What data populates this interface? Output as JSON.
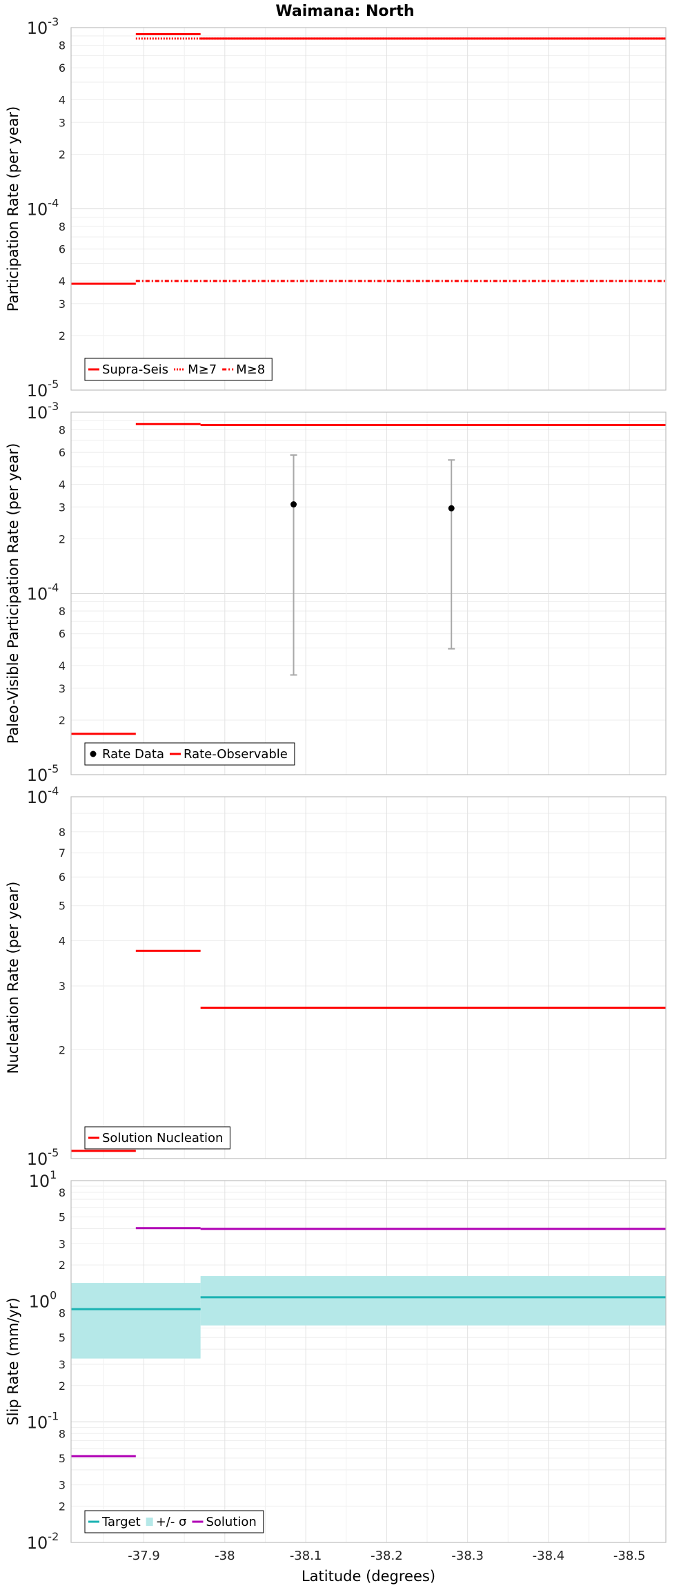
{
  "chart_data": {
    "title": "Waimana: North",
    "xlabel": "Latitude (degrees)",
    "xlim": [
      -37.81,
      -38.545
    ],
    "x_ticks": [
      {
        "value": -37.9,
        "label": "-37.9"
      },
      {
        "value": -38.0,
        "label": "-38"
      },
      {
        "value": -38.1,
        "label": "-38.1"
      },
      {
        "value": -38.2,
        "label": "-38.2"
      },
      {
        "value": -38.3,
        "label": "-38.3"
      },
      {
        "value": -38.4,
        "label": "-38.4"
      },
      {
        "value": -38.5,
        "label": "-38.5"
      }
    ],
    "panels": [
      {
        "id": "participation",
        "type": "line",
        "ylabel": "Participation Rate (per year)",
        "yscale": "log",
        "ylim": [
          1e-05,
          0.001
        ],
        "y_ticks": [
          {
            "value": 0.001,
            "base": "10",
            "exp": "-3",
            "major": true
          },
          {
            "value": 0.0008,
            "label": "8"
          },
          {
            "value": 0.0006,
            "label": "6"
          },
          {
            "value": 0.0004,
            "label": "4"
          },
          {
            "value": 0.0003,
            "label": "3"
          },
          {
            "value": 0.0002,
            "label": "2"
          },
          {
            "value": 0.0001,
            "base": "10",
            "exp": "-4",
            "major": true
          },
          {
            "value": 8e-05,
            "label": "8"
          },
          {
            "value": 6e-05,
            "label": "6"
          },
          {
            "value": 4e-05,
            "label": "4"
          },
          {
            "value": 3e-05,
            "label": "3"
          },
          {
            "value": 2e-05,
            "label": "2"
          },
          {
            "value": 1e-05,
            "base": "10",
            "exp": "-5",
            "major": true
          }
        ],
        "series": [
          {
            "name": "Supra-Seis",
            "color": "#ff0000",
            "style": "solid",
            "steps": [
              [
                -37.81,
                -37.89,
                3.86e-05
              ],
              [
                -37.89,
                -37.97,
                0.00092
              ],
              [
                -37.97,
                -38.545,
                0.00087
              ]
            ]
          },
          {
            "name": "M≥7",
            "color": "#ff0000",
            "style": "dotted",
            "steps": [
              [
                -37.89,
                -37.97,
                0.00087
              ],
              [
                -37.97,
                -38.545,
                0.00087
              ]
            ]
          },
          {
            "name": "M≥8",
            "color": "#ff0000",
            "style": "dashdot",
            "steps": [
              [
                -37.89,
                -38.545,
                4e-05
              ]
            ]
          }
        ],
        "legend": {
          "position": "bottom-left",
          "entries": [
            {
              "label": "Supra-Seis",
              "color": "#ff0000",
              "style": "solid"
            },
            {
              "label": "M≥7",
              "color": "#ff0000",
              "style": "dotted"
            },
            {
              "label": "M≥8",
              "color": "#ff0000",
              "style": "dashdot"
            }
          ]
        }
      },
      {
        "id": "paleo",
        "type": "line",
        "ylabel": "Paleo-Visible Participation Rate (per year)",
        "yscale": "log",
        "ylim": [
          1e-05,
          0.001
        ],
        "y_ticks": [
          {
            "value": 0.001,
            "base": "10",
            "exp": "-3",
            "major": true
          },
          {
            "value": 0.0008,
            "label": "8"
          },
          {
            "value": 0.0006,
            "label": "6"
          },
          {
            "value": 0.0004,
            "label": "4"
          },
          {
            "value": 0.0003,
            "label": "3"
          },
          {
            "value": 0.0002,
            "label": "2"
          },
          {
            "value": 0.0001,
            "base": "10",
            "exp": "-4",
            "major": true
          },
          {
            "value": 8e-05,
            "label": "8"
          },
          {
            "value": 6e-05,
            "label": "6"
          },
          {
            "value": 4e-05,
            "label": "4"
          },
          {
            "value": 3e-05,
            "label": "3"
          },
          {
            "value": 2e-05,
            "label": "2"
          },
          {
            "value": 1e-05,
            "base": "10",
            "exp": "-5",
            "major": true
          }
        ],
        "series": [
          {
            "name": "Rate-Observable",
            "color": "#ff0000",
            "style": "solid",
            "steps": [
              [
                -37.81,
                -37.89,
                1.68e-05
              ],
              [
                -37.89,
                -37.97,
                0.00086
              ],
              [
                -37.97,
                -38.545,
                0.00085
              ]
            ]
          }
        ],
        "points": [
          {
            "name": "Rate Data",
            "x": -38.085,
            "y": 0.00031,
            "low": 3.55e-05,
            "high": 0.00058
          },
          {
            "name": "Rate Data",
            "x": -38.28,
            "y": 0.000295,
            "low": 4.95e-05,
            "high": 0.000545
          }
        ],
        "legend": {
          "position": "bottom-left",
          "entries": [
            {
              "label": "Rate Data",
              "color": "#000000",
              "style": "dot"
            },
            {
              "label": "Rate-Observable",
              "color": "#ff0000",
              "style": "solid"
            }
          ]
        }
      },
      {
        "id": "nucleation",
        "type": "line",
        "ylabel": "Nucleation Rate (per year)",
        "yscale": "log",
        "ylim": [
          1e-05,
          0.0001
        ],
        "y_ticks": [
          {
            "value": 0.0001,
            "base": "10",
            "exp": "-4",
            "major": true
          },
          {
            "value": 8e-05,
            "label": "8"
          },
          {
            "value": 7e-05,
            "label": "7"
          },
          {
            "value": 6e-05,
            "label": "6"
          },
          {
            "value": 5e-05,
            "label": "5"
          },
          {
            "value": 4e-05,
            "label": "4"
          },
          {
            "value": 3e-05,
            "label": "3"
          },
          {
            "value": 2e-05,
            "label": "2"
          },
          {
            "value": 1e-05,
            "base": "10",
            "exp": "-5",
            "major": true
          }
        ],
        "series": [
          {
            "name": "Solution Nucleation",
            "color": "#ff0000",
            "style": "solid",
            "steps": [
              [
                -37.81,
                -37.89,
                1.05e-05
              ],
              [
                -37.89,
                -37.97,
                3.75e-05
              ],
              [
                -37.97,
                -38.545,
                2.61e-05
              ]
            ]
          }
        ],
        "legend": {
          "position": "bottom-left",
          "entries": [
            {
              "label": "Solution Nucleation",
              "color": "#ff0000",
              "style": "solid"
            }
          ]
        }
      },
      {
        "id": "slip",
        "type": "line",
        "ylabel": "Slip Rate (mm/yr)",
        "yscale": "log",
        "ylim": [
          0.01,
          10
        ],
        "y_ticks": [
          {
            "value": 10,
            "base": "10",
            "exp": "1",
            "major": true
          },
          {
            "value": 8,
            "label": "8"
          },
          {
            "value": 5,
            "label": "5"
          },
          {
            "value": 3,
            "label": "3"
          },
          {
            "value": 2,
            "label": "2"
          },
          {
            "value": 1,
            "base": "10",
            "exp": "0",
            "major": true
          },
          {
            "value": 0.8,
            "label": "8"
          },
          {
            "value": 0.5,
            "label": "5"
          },
          {
            "value": 0.3,
            "label": "3"
          },
          {
            "value": 0.2,
            "label": "2"
          },
          {
            "value": 0.1,
            "base": "10",
            "exp": "-1",
            "major": true
          },
          {
            "value": 0.08,
            "label": "8"
          },
          {
            "value": 0.05,
            "label": "5"
          },
          {
            "value": 0.03,
            "label": "3"
          },
          {
            "value": 0.02,
            "label": "2"
          },
          {
            "value": 0.01,
            "base": "10",
            "exp": "-2",
            "major": true
          }
        ],
        "bands": [
          {
            "name": "+/- σ",
            "color": "#b5e8e8",
            "steps": [
              [
                -37.81,
                -37.97,
                0.335,
                1.42
              ],
              [
                -37.97,
                -38.545,
                0.63,
                1.62
              ]
            ]
          }
        ],
        "series": [
          {
            "name": "Target",
            "color": "#1ab2b2",
            "style": "solid",
            "steps": [
              [
                -37.81,
                -37.97,
                0.86
              ],
              [
                -37.97,
                -38.545,
                1.08
              ]
            ]
          },
          {
            "name": "Solution",
            "color": "#b000b5",
            "style": "solid",
            "steps": [
              [
                -37.81,
                -37.89,
                0.052
              ],
              [
                -37.89,
                -37.97,
                4.04
              ],
              [
                -37.97,
                -38.545,
                3.98
              ]
            ]
          }
        ],
        "legend": {
          "position": "bottom-left",
          "entries": [
            {
              "label": "Target",
              "color": "#1ab2b2",
              "style": "solid"
            },
            {
              "label": "+/- σ",
              "color": "#b5e8e8",
              "style": "band"
            },
            {
              "label": "Solution",
              "color": "#b000b5",
              "style": "solid"
            }
          ]
        }
      }
    ]
  }
}
